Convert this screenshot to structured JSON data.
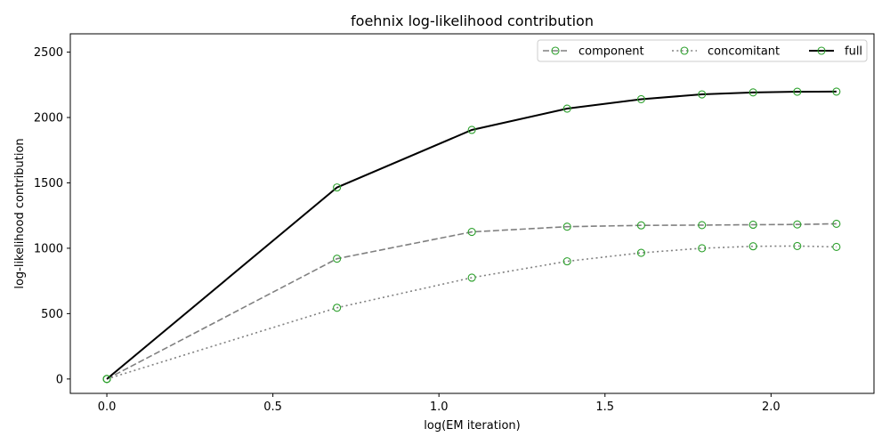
{
  "chart_data": {
    "type": "line",
    "title": "foehnix log-likelihood contribution",
    "xlabel": "log(EM iteration)",
    "ylabel": "log-likelihood contribution",
    "xlim": [
      -0.11,
      2.31
    ],
    "ylim": [
      -110,
      2640
    ],
    "xticks": [
      0.0,
      0.5,
      1.0,
      1.5,
      2.0
    ],
    "xtick_labels": [
      "0.0",
      "0.5",
      "1.0",
      "1.5",
      "2.0"
    ],
    "yticks": [
      0,
      500,
      1000,
      1500,
      2000,
      2500
    ],
    "ytick_labels": [
      "0",
      "500",
      "1000",
      "1500",
      "2000",
      "2500"
    ],
    "grid": false,
    "legend_position": "top-right",
    "marker": {
      "shape": "open-circle",
      "color": "#2ca02c"
    },
    "x": [
      0.0,
      0.693,
      1.099,
      1.386,
      1.609,
      1.792,
      1.946,
      2.079,
      2.197
    ],
    "series": [
      {
        "name": "component",
        "style": "dashed",
        "color": "#808080",
        "values": [
          0,
          920,
          1125,
          1165,
          1175,
          1177,
          1180,
          1182,
          1187
        ]
      },
      {
        "name": "concomitant",
        "style": "dotted",
        "color": "#808080",
        "values": [
          0,
          545,
          775,
          900,
          965,
          1000,
          1015,
          1017,
          1010
        ]
      },
      {
        "name": "full",
        "style": "solid",
        "color": "#000000",
        "values": [
          0,
          1465,
          1905,
          2068,
          2140,
          2177,
          2192,
          2197,
          2198
        ]
      }
    ]
  }
}
